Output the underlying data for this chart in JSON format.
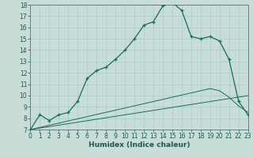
{
  "xlabel": "Humidex (Indice chaleur)",
  "background_color": "#c8ddd8",
  "grid_color": "#a8ccc6",
  "line_color": "#1a6b5a",
  "x_main": [
    0,
    1,
    2,
    3,
    4,
    5,
    6,
    7,
    8,
    9,
    10,
    11,
    12,
    13,
    14,
    15,
    16,
    17,
    18,
    19,
    20,
    21,
    22,
    23
  ],
  "y_main": [
    7.0,
    8.3,
    7.8,
    8.3,
    8.5,
    9.5,
    11.5,
    12.2,
    12.5,
    13.2,
    14.0,
    15.0,
    16.2,
    16.5,
    17.9,
    18.2,
    17.5,
    15.2,
    15.0,
    15.2,
    14.8,
    13.2,
    9.5,
    8.3
  ],
  "y_linear1": [
    7.0,
    7.19,
    7.38,
    7.57,
    7.76,
    7.95,
    8.14,
    8.33,
    8.52,
    8.71,
    8.9,
    9.09,
    9.28,
    9.47,
    9.66,
    9.85,
    10.04,
    10.23,
    10.42,
    10.61,
    10.42,
    9.85,
    9.09,
    8.52
  ],
  "y_linear2": [
    7.0,
    7.13,
    7.26,
    7.39,
    7.52,
    7.65,
    7.78,
    7.91,
    8.04,
    8.17,
    8.3,
    8.43,
    8.56,
    8.69,
    8.82,
    8.95,
    9.08,
    9.21,
    9.34,
    9.47,
    9.6,
    9.73,
    9.86,
    9.99
  ],
  "ylim": [
    7,
    18
  ],
  "xlim": [
    0,
    23
  ],
  "yticks": [
    7,
    8,
    9,
    10,
    11,
    12,
    13,
    14,
    15,
    16,
    17,
    18
  ],
  "xticks": [
    0,
    1,
    2,
    3,
    4,
    5,
    6,
    7,
    8,
    9,
    10,
    11,
    12,
    13,
    14,
    15,
    16,
    17,
    18,
    19,
    20,
    21,
    22,
    23
  ],
  "tick_fontsize": 5.5,
  "xlabel_fontsize": 6.5,
  "tick_color": "#1a5a4a",
  "xlabel_color": "#1a5a4a"
}
